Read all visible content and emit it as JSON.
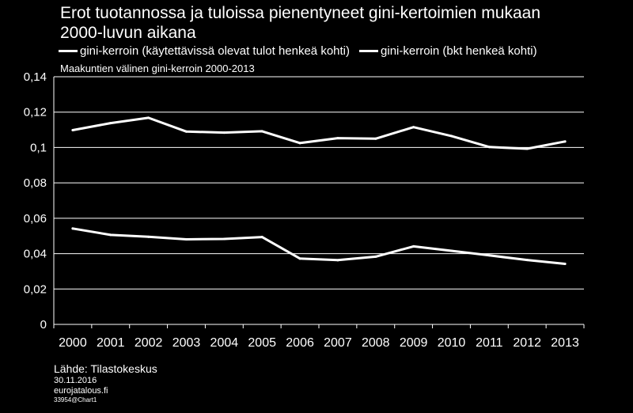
{
  "title_line1": "Erot tuotannossa ja tuloissa pienentyneet gini-kertoimien mukaan",
  "title_line2": "2000-luvun aikana",
  "subtitle": "Maakuntien välinen gini-kerroin 2000-2013",
  "footer": {
    "source": "Lähde: Tilastokeskus",
    "date": "30.11.2016",
    "site": "eurojatalous.fi",
    "code": "33954@Chart1"
  },
  "colors": {
    "background": "#000000",
    "line": "#ffffff",
    "axis": "#ffffff"
  },
  "chart_data": {
    "type": "line",
    "x": [
      "2000",
      "2001",
      "2002",
      "2003",
      "2004",
      "2005",
      "2006",
      "2007",
      "2008",
      "2009",
      "2010",
      "2011",
      "2012",
      "2013"
    ],
    "y_ticks": [
      "0,14",
      "0,12",
      "0,1",
      "0,08",
      "0,06",
      "0,04",
      "0,02",
      "0"
    ],
    "ylim": [
      0,
      0.14
    ],
    "grid": true,
    "legend_position": "top",
    "series": [
      {
        "name": "gini-kerroin (käytettävissä olevat tulot henkeä kohti)",
        "values": [
          0.0542,
          0.0506,
          0.0495,
          0.0481,
          0.0483,
          0.0494,
          0.0372,
          0.0363,
          0.0383,
          0.0441,
          0.0416,
          0.039,
          0.0364,
          0.0342
        ]
      },
      {
        "name": "gini-kerroin (bkt henkeä kohti)",
        "values": [
          0.1098,
          0.1138,
          0.1168,
          0.109,
          0.1084,
          0.1092,
          0.1025,
          0.1053,
          0.105,
          0.1115,
          0.1065,
          0.1003,
          0.0993,
          0.1034
        ]
      }
    ]
  }
}
